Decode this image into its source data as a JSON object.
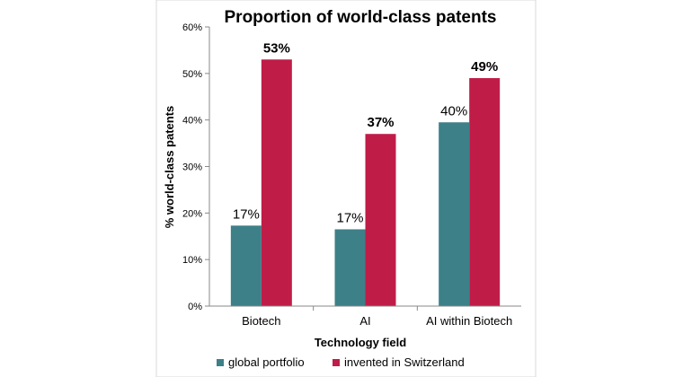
{
  "chart_data": {
    "type": "bar",
    "title": "Proportion of world-class patents",
    "xlabel": "Technology field",
    "ylabel": "% world-class patents",
    "categories": [
      "Biotech",
      "AI",
      "AI within Biotech"
    ],
    "series": [
      {
        "name": "global portfolio",
        "color": "#3d8088",
        "values": [
          17.3,
          16.5,
          39.5
        ],
        "labels": [
          "17%",
          "17%",
          "40%"
        ]
      },
      {
        "name": "invented in Switzerland",
        "color": "#c01c48",
        "values": [
          53,
          37,
          49
        ],
        "labels": [
          "53%",
          "37%",
          "49%"
        ]
      }
    ],
    "ylim": [
      0,
      60
    ],
    "yticks": [
      "0%",
      "10%",
      "20%",
      "30%",
      "40%",
      "50%",
      "60%"
    ],
    "grid": false,
    "legend_position": "bottom"
  }
}
